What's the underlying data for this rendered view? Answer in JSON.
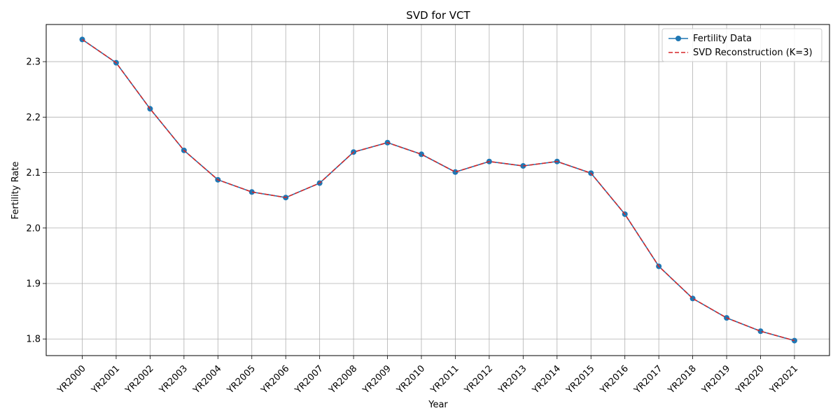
{
  "chart_data": {
    "type": "line",
    "title": "SVD for VCT",
    "xlabel": "Year",
    "ylabel": "Fertility Rate",
    "categories": [
      "YR2000",
      "YR2001",
      "YR2002",
      "YR2003",
      "YR2004",
      "YR2005",
      "YR2006",
      "YR2007",
      "YR2008",
      "YR2009",
      "YR2010",
      "YR2011",
      "YR2012",
      "YR2013",
      "YR2014",
      "YR2015",
      "YR2016",
      "YR2017",
      "YR2018",
      "YR2019",
      "YR2020",
      "YR2021"
    ],
    "ylim": [
      1.77,
      2.367
    ],
    "yticks": [
      1.8,
      1.9,
      2.0,
      2.1,
      2.2,
      2.3
    ],
    "ytick_labels": [
      "1.8",
      "1.9",
      "2.0",
      "2.1",
      "2.2",
      "2.3"
    ],
    "grid": true,
    "legend_position": "top-right",
    "series": [
      {
        "name": "Fertility Data",
        "color": "#1f77b4",
        "style": "solid-with-circle-markers",
        "values": [
          2.34,
          2.298,
          2.215,
          2.14,
          2.087,
          2.065,
          2.055,
          2.081,
          2.137,
          2.154,
          2.133,
          2.101,
          2.12,
          2.112,
          2.12,
          2.099,
          2.025,
          1.931,
          1.873,
          1.838,
          1.814,
          1.797
        ]
      },
      {
        "name": "SVD Reconstruction (K=3)",
        "color": "#d62728",
        "style": "dashed",
        "values": [
          2.34,
          2.298,
          2.215,
          2.14,
          2.087,
          2.065,
          2.055,
          2.081,
          2.137,
          2.154,
          2.133,
          2.101,
          2.12,
          2.112,
          2.12,
          2.099,
          2.025,
          1.931,
          1.873,
          1.838,
          1.814,
          1.797
        ]
      }
    ]
  }
}
